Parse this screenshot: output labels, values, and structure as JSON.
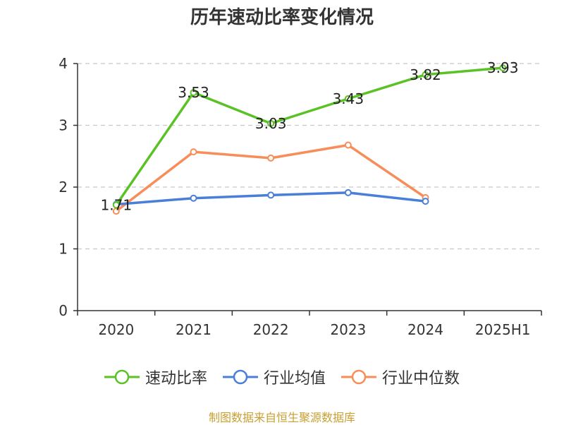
{
  "title": "历年速动比率变化情况",
  "source_note": "制图数据来自恒生聚源数据库",
  "chart_data": {
    "type": "line",
    "categories": [
      "2020",
      "2021",
      "2022",
      "2023",
      "2024",
      "2025H1"
    ],
    "ylim": [
      0,
      4
    ],
    "yticks": [
      0,
      1,
      2,
      3,
      4
    ],
    "grid": true,
    "legend_position": "bottom",
    "series": [
      {
        "name": "速动比率",
        "color": "#5bc225",
        "values": [
          1.71,
          3.53,
          3.03,
          3.43,
          3.82,
          3.93
        ],
        "show_labels": true
      },
      {
        "name": "行业均值",
        "color": "#4a7fd9",
        "values": [
          1.72,
          1.82,
          1.87,
          1.91,
          1.77,
          null
        ],
        "show_labels": false
      },
      {
        "name": "行业中位数",
        "color": "#f78d58",
        "values": [
          1.61,
          2.57,
          2.47,
          2.68,
          1.83,
          null
        ],
        "show_labels": false
      }
    ]
  }
}
